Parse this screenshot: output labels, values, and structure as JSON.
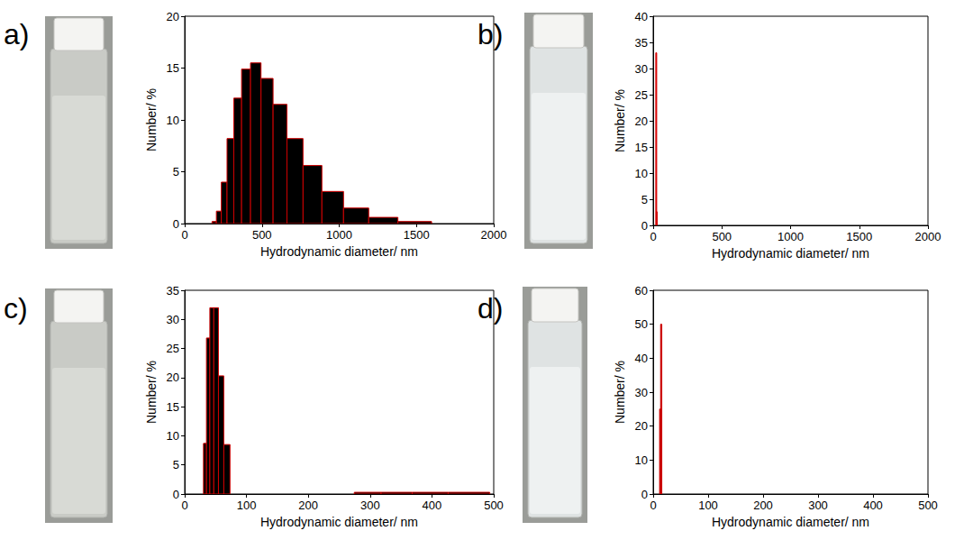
{
  "chart_data": [
    {
      "type": "histogram",
      "title": "a)",
      "xlabel": "Hydrodynamic diameter/ nm",
      "ylabel": "Number/ %",
      "bins": [
        177,
        205,
        237,
        274,
        318,
        368,
        426,
        494,
        572,
        662,
        766,
        888,
        1028,
        1191,
        1380,
        1598
      ],
      "values": [
        0.2,
        1.2,
        4.0,
        8.2,
        12.1,
        14.9,
        15.5,
        14.0,
        11.5,
        8.2,
        5.6,
        3.1,
        1.5,
        0.6,
        0.2
      ],
      "color": "#000000",
      "xlim": [
        0,
        2000
      ],
      "xticks": [
        0,
        500,
        1000,
        1500,
        2000
      ],
      "ylim": [
        0,
        20
      ],
      "yticks": [
        0,
        5,
        10,
        15,
        20
      ]
    },
    {
      "type": "histogram",
      "title": "b)",
      "xlabel": "Hydrodynamic diameter/ nm",
      "ylabel": "Number/ %",
      "bins": [
        19,
        22.5,
        26
      ],
      "values": [
        33.0,
        2.6
      ],
      "color": "#ff0000",
      "xlim": [
        0,
        2000
      ],
      "xticks": [
        0,
        500,
        1000,
        1500,
        2000
      ],
      "ylim": [
        0,
        40
      ],
      "yticks": [
        0,
        5,
        10,
        15,
        20,
        25,
        30,
        35,
        40
      ]
    },
    {
      "type": "histogram",
      "title": "c)",
      "xlabel": "Hydrodynamic diameter/ nm",
      "ylabel": "Number/ %",
      "bins": [
        30.4,
        35.2,
        40.7,
        47.1,
        54.6,
        63.3,
        73.3,
        84.8,
        98.2,
        113.7,
        131.7,
        152.6,
        176.7,
        204.6,
        237.0,
        274.4,
        317.8,
        368.1,
        426.3,
        493.6
      ],
      "values": [
        8.7,
        26.8,
        32.0,
        32.0,
        20.3,
        8.5,
        0,
        0,
        0,
        0,
        0,
        0,
        0,
        0,
        0,
        0.3,
        0.3,
        0.3,
        0.3
      ],
      "color": "#000000",
      "xlim": [
        0,
        500
      ],
      "xticks": [
        0,
        100,
        200,
        300,
        400,
        500
      ],
      "ylim": [
        0,
        35
      ],
      "yticks": [
        0,
        5,
        10,
        15,
        20,
        25,
        30,
        35
      ]
    },
    {
      "type": "histogram",
      "title": "d)",
      "xlabel": "Hydrodynamic diameter/ nm",
      "ylabel": "Number/ %",
      "bins": [
        11.7,
        13.5,
        15.7
      ],
      "values": [
        25,
        50
      ],
      "color": "#a00000",
      "xlim": [
        0,
        500
      ],
      "xticks": [
        0,
        100,
        200,
        300,
        400,
        500
      ],
      "ylim": [
        0,
        60
      ],
      "yticks": [
        0,
        10,
        20,
        30,
        40,
        50,
        60
      ]
    }
  ]
}
